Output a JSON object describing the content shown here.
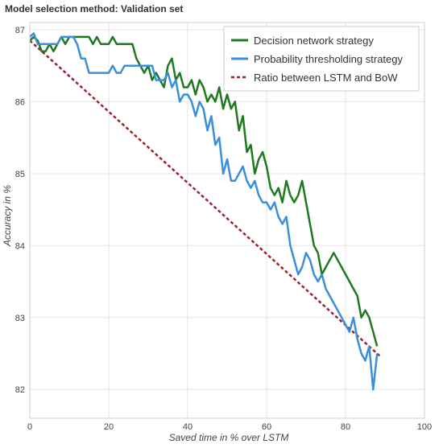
{
  "chart_data": {
    "type": "line",
    "title": "Model selection method: Validation set",
    "xlabel": "Saved time in % over LSTM",
    "ylabel": "Accuracy in %",
    "xlim": [
      0,
      100
    ],
    "ylim": [
      81.6,
      87.1
    ],
    "xticks": [
      0,
      20,
      40,
      60,
      80,
      100
    ],
    "yticks": [
      82,
      83,
      84,
      85,
      86,
      87
    ],
    "grid": true,
    "legend_position": "top-right",
    "series": [
      {
        "name": "Decision network strategy",
        "color": "#1f7a1f",
        "style": "solid",
        "x": [
          0,
          1,
          2,
          3,
          4,
          5,
          6,
          7,
          8,
          9,
          10,
          11,
          12,
          13,
          14,
          15,
          16,
          17,
          18,
          19,
          20,
          21,
          22,
          23,
          24,
          25,
          26,
          27,
          28,
          29,
          30,
          31,
          32,
          33,
          34,
          35,
          36,
          37,
          38,
          39,
          40,
          41,
          42,
          43,
          44,
          45,
          46,
          47,
          48,
          49,
          50,
          51,
          52,
          53,
          54,
          55,
          56,
          57,
          58,
          59,
          60,
          61,
          62,
          63,
          64,
          65,
          66,
          67,
          68,
          69,
          70,
          71,
          72,
          73,
          74,
          75,
          76,
          77,
          78,
          79,
          80,
          81,
          82,
          83,
          84,
          85,
          86,
          87,
          88
        ],
        "values": [
          86.85,
          86.9,
          86.85,
          86.7,
          86.7,
          86.8,
          86.7,
          86.8,
          86.9,
          86.8,
          86.9,
          86.9,
          86.9,
          86.9,
          86.9,
          86.9,
          86.8,
          86.9,
          86.8,
          86.8,
          86.8,
          86.9,
          86.8,
          86.8,
          86.8,
          86.8,
          86.8,
          86.6,
          86.5,
          86.4,
          86.5,
          86.3,
          86.4,
          86.3,
          86.2,
          86.5,
          86.6,
          86.3,
          86.4,
          86.2,
          86.2,
          86.3,
          86.1,
          86.3,
          86.2,
          86.0,
          86.1,
          86.0,
          86.2,
          85.9,
          86.1,
          85.9,
          86.0,
          85.6,
          85.8,
          85.3,
          85.4,
          85.0,
          85.2,
          85.3,
          85.1,
          84.8,
          84.7,
          84.8,
          84.6,
          84.9,
          84.7,
          84.6,
          84.7,
          84.9,
          84.6,
          84.3,
          84.0,
          83.9,
          83.6,
          83.7,
          83.8,
          83.9,
          83.8,
          83.7,
          83.6,
          83.5,
          83.4,
          83.3,
          83.0,
          83.1,
          83.0,
          82.8,
          82.6
        ]
      },
      {
        "name": "Probability thresholding strategy",
        "color": "#3b8fd9",
        "style": "solid",
        "x": [
          0,
          1,
          2,
          3,
          4,
          5,
          6,
          7,
          8,
          9,
          10,
          11,
          12,
          13,
          14,
          15,
          16,
          17,
          18,
          19,
          20,
          21,
          22,
          23,
          24,
          25,
          26,
          27,
          28,
          29,
          30,
          31,
          32,
          33,
          34,
          35,
          36,
          37,
          38,
          39,
          40,
          41,
          42,
          43,
          44,
          45,
          46,
          47,
          48,
          49,
          50,
          51,
          52,
          53,
          54,
          55,
          56,
          57,
          58,
          59,
          60,
          61,
          62,
          63,
          64,
          65,
          66,
          67,
          68,
          69,
          70,
          71,
          72,
          73,
          74,
          75,
          76,
          77,
          78,
          79,
          80,
          81,
          82,
          83,
          84,
          85,
          86,
          87,
          88
        ],
        "values": [
          86.9,
          86.95,
          86.8,
          86.8,
          86.8,
          86.8,
          86.8,
          86.8,
          86.9,
          86.9,
          86.9,
          86.9,
          86.8,
          86.6,
          86.6,
          86.4,
          86.4,
          86.4,
          86.4,
          86.4,
          86.4,
          86.5,
          86.4,
          86.4,
          86.5,
          86.5,
          86.5,
          86.5,
          86.5,
          86.5,
          86.5,
          86.5,
          86.3,
          86.3,
          86.3,
          86.4,
          86.2,
          86.3,
          86.0,
          86.1,
          86.1,
          86.0,
          85.8,
          86.0,
          85.9,
          85.6,
          85.8,
          85.4,
          85.5,
          85.0,
          85.2,
          84.9,
          84.9,
          85.0,
          85.1,
          84.9,
          84.8,
          84.9,
          84.7,
          84.6,
          84.6,
          84.5,
          84.6,
          84.4,
          84.3,
          84.4,
          84.0,
          83.8,
          83.6,
          83.7,
          83.9,
          83.8,
          83.6,
          83.5,
          83.6,
          83.4,
          83.3,
          83.2,
          83.1,
          83.0,
          82.9,
          82.8,
          83.0,
          82.7,
          82.5,
          82.4,
          82.6,
          82.0,
          82.5
        ]
      },
      {
        "name": "Ratio between LSTM and BoW",
        "color": "#a01f2a",
        "style": "dashed",
        "x": [
          0,
          89
        ],
        "values": [
          86.85,
          82.45
        ]
      }
    ]
  }
}
